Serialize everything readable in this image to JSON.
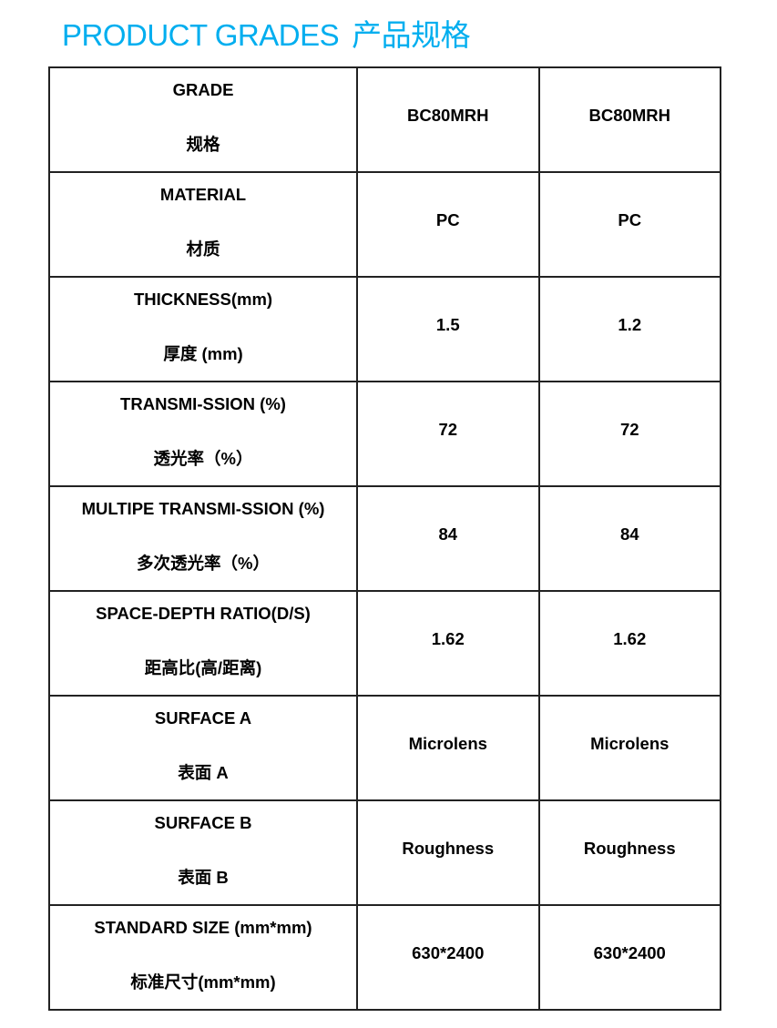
{
  "title": {
    "en": "PRODUCT GRADES",
    "cn": "产品规格",
    "color": "#00aeef"
  },
  "rows": [
    {
      "label_en": "GRADE",
      "label_cn": "规格",
      "values": [
        "BC80MRH",
        "BC80MRH"
      ]
    },
    {
      "label_en": "MATERIAL",
      "label_cn": "材质",
      "values": [
        "PC",
        "PC"
      ]
    },
    {
      "label_en": "THICKNESS(mm)",
      "label_cn": "厚度 (mm)",
      "values": [
        "1.5",
        "1.2"
      ]
    },
    {
      "label_en": "TRANSMI-SSION (%)",
      "label_cn": "透光率（%）",
      "values": [
        "72",
        "72"
      ]
    },
    {
      "label_en": "MULTIPE TRANSMI-SSION (%)",
      "label_cn": "多次透光率（%）",
      "values": [
        "84",
        "84"
      ]
    },
    {
      "label_en": "SPACE-DEPTH RATIO(D/S)",
      "label_cn": "距高比(高/距离)",
      "values": [
        "1.62",
        "1.62"
      ]
    },
    {
      "label_en": "SURFACE A",
      "label_cn": "表面 A",
      "values": [
        "Microlens",
        "Microlens"
      ]
    },
    {
      "label_en": "SURFACE B",
      "label_cn": "表面 B",
      "values": [
        "Roughness",
        "Roughness"
      ]
    },
    {
      "label_en": "STANDARD SIZE (mm*mm)",
      "label_cn": "标准尺寸(mm*mm)",
      "values": [
        "630*2400",
        "630*2400"
      ]
    }
  ]
}
